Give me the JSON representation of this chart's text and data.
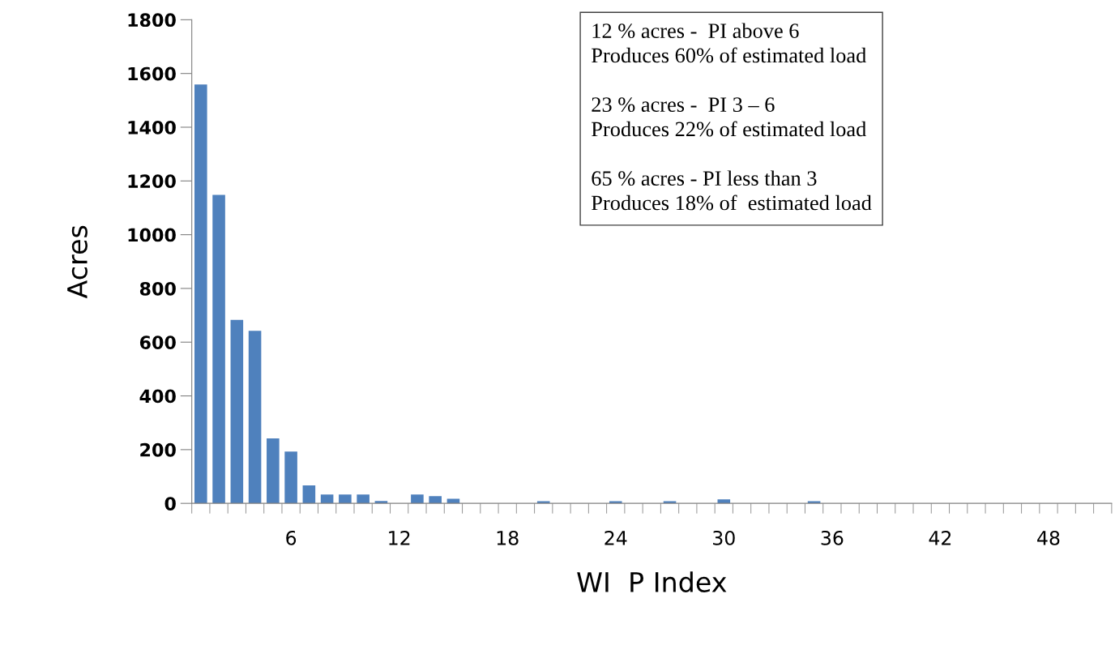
{
  "chart_data": {
    "type": "bar",
    "xlabel": "WI  P Index",
    "ylabel": "Acres",
    "categories": [
      null,
      null,
      null,
      null,
      null,
      "6",
      null,
      null,
      null,
      null,
      null,
      "12",
      null,
      null,
      null,
      null,
      null,
      "18",
      null,
      null,
      null,
      null,
      null,
      "24",
      null,
      null,
      null,
      null,
      null,
      "30",
      null,
      null,
      null,
      null,
      null,
      "36",
      null,
      null,
      null,
      null,
      null,
      "42",
      null,
      null,
      null,
      null,
      null,
      "48",
      null,
      null,
      null
    ],
    "values": [
      1559,
      1148,
      683,
      642,
      242,
      193,
      67,
      33,
      33,
      33,
      9,
      0,
      33,
      27,
      17,
      0,
      0,
      0,
      0,
      8,
      0,
      0,
      0,
      8,
      0,
      0,
      8,
      0,
      0,
      15,
      0,
      0,
      0,
      0,
      8,
      0,
      0,
      0,
      0,
      0,
      0,
      0,
      0,
      0,
      0,
      0,
      0,
      0,
      0,
      0,
      0
    ],
    "color": "#4f81bd",
    "ylim": [
      0,
      1800
    ],
    "yticks": [
      0,
      200,
      400,
      600,
      800,
      1000,
      1200,
      1400,
      1600,
      1800
    ],
    "grid": false,
    "legend": false,
    "annotations": [
      "12 % acres -  PI above 6\nProduces 60% of estimated load\n\n23 % acres -  PI 3 – 6\nProduces 22% of estimated load\n\n65 % acres - PI less than 3\nProduces 18% of  estimated load"
    ]
  }
}
